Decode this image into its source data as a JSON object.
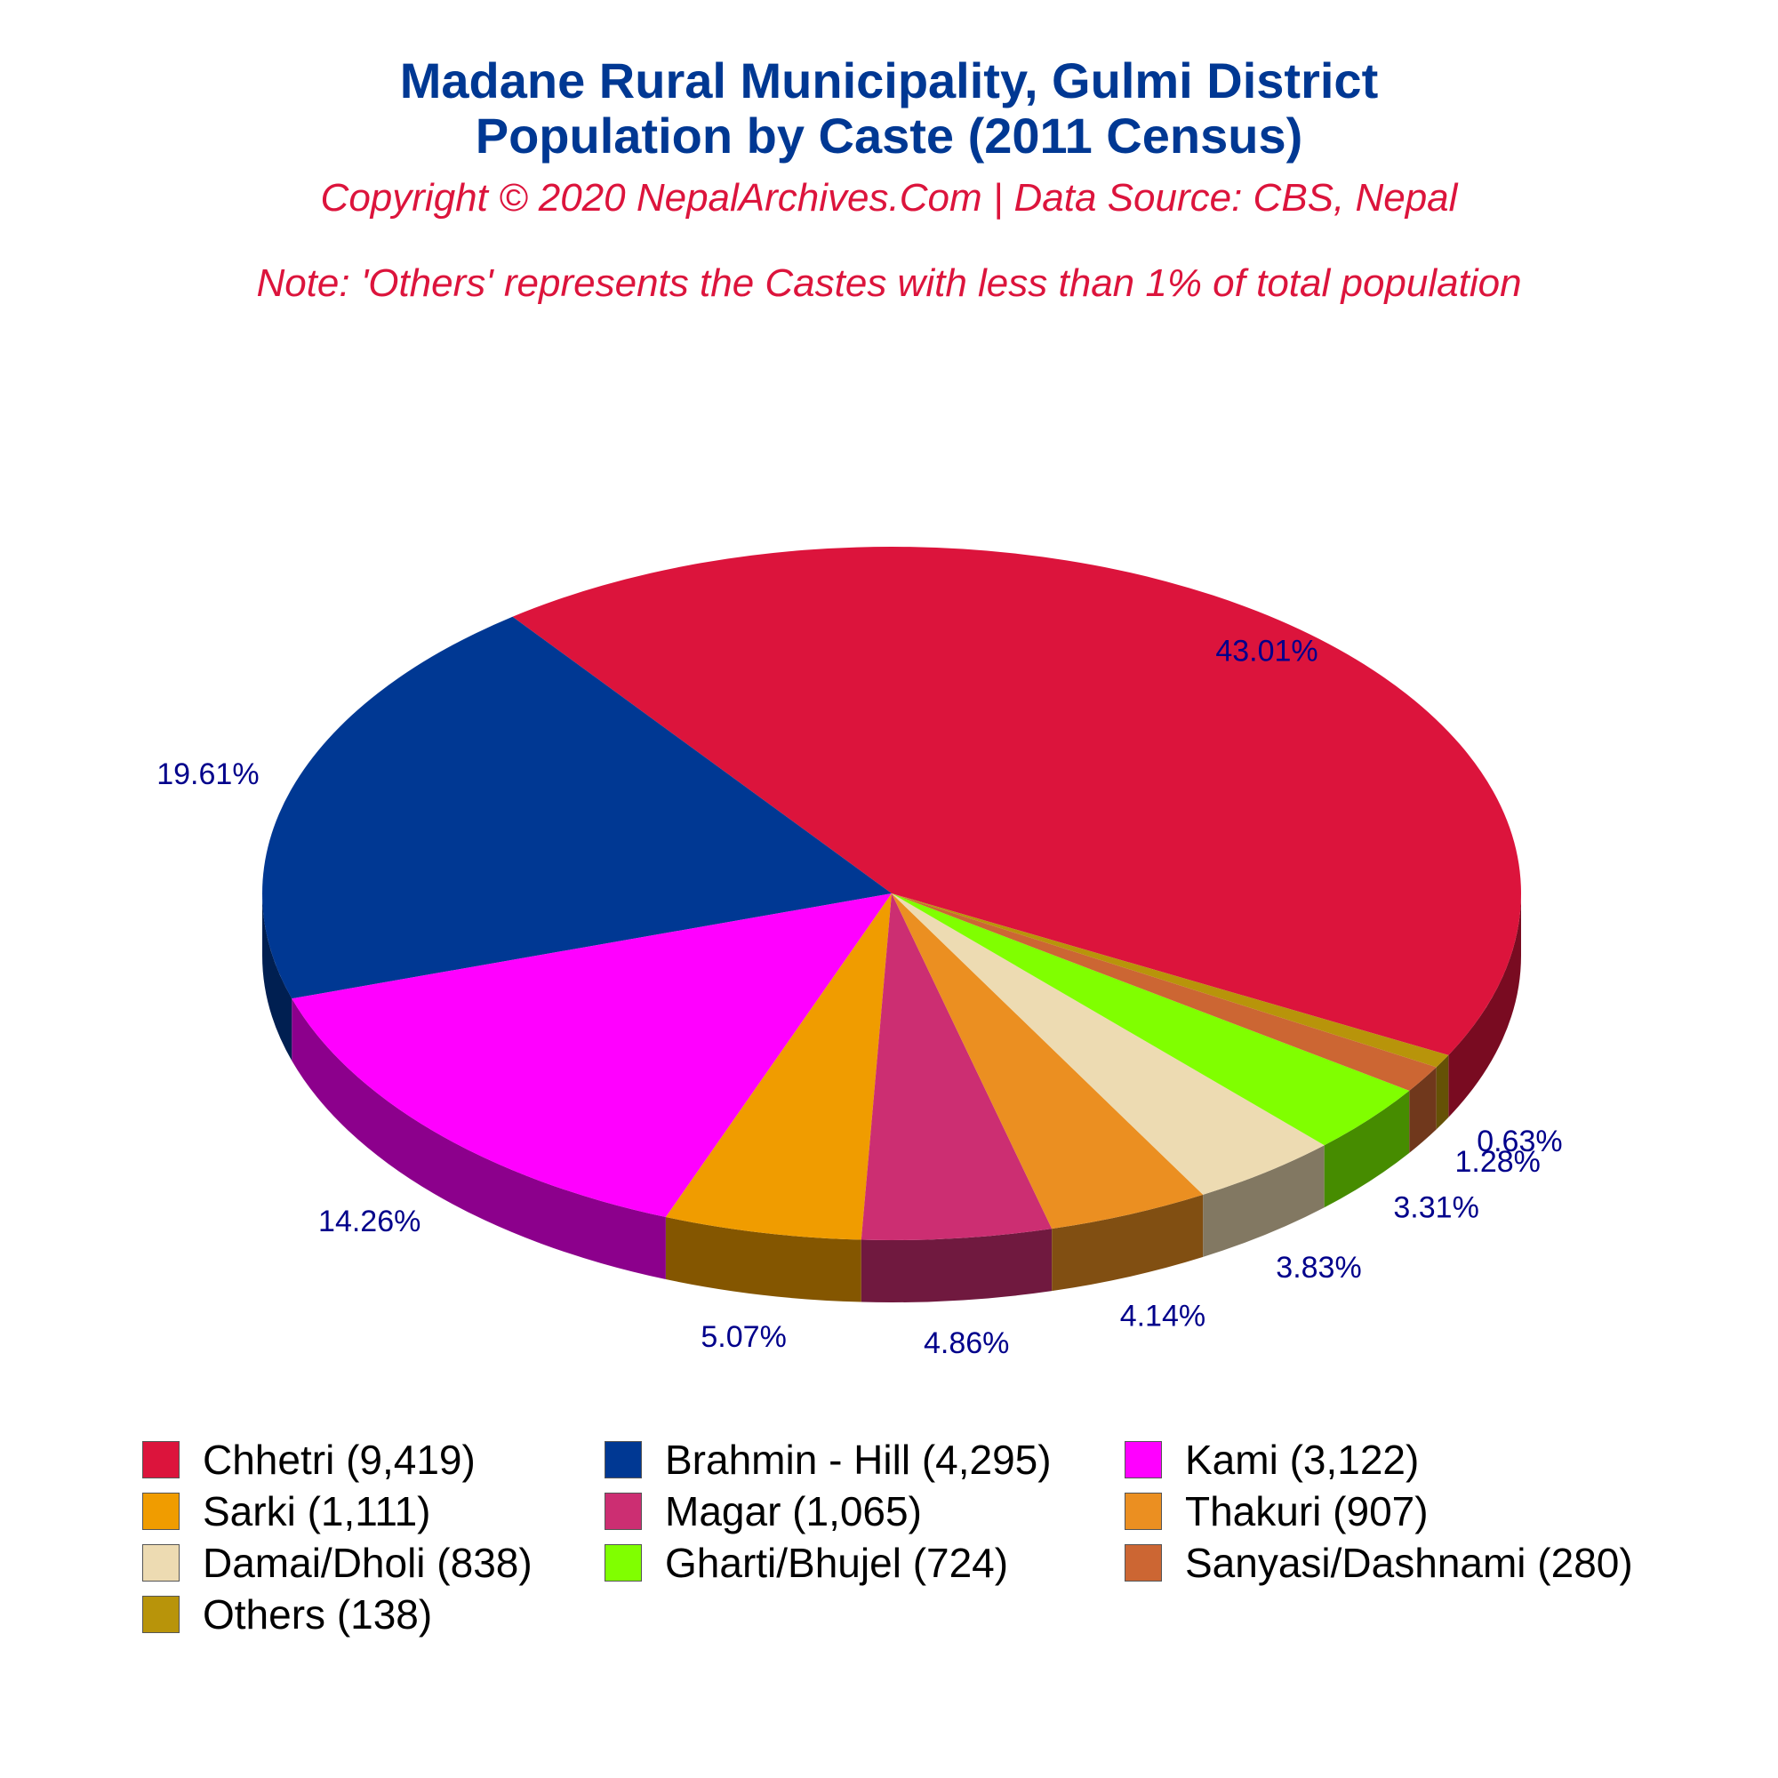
{
  "title_lines": [
    "Madane Rural Municipality, Gulmi District",
    "Population by Caste (2011 Census)"
  ],
  "subtitle": "Copyright © 2020 NepalArchives.Com | Data Source: CBS, Nepal",
  "note": "Note: 'Others' represents the Castes with less than 1% of total population",
  "label_color": "#00008b",
  "chart_data": {
    "type": "pie",
    "style": "3d",
    "legend_position": "bottom",
    "categories": [
      "Chhetri",
      "Brahmin - Hill",
      "Kami",
      "Sarki",
      "Magar",
      "Thakuri",
      "Damai/Dholi",
      "Gharti/Bhujel",
      "Sanyasi/Dashnami",
      "Others"
    ],
    "values": [
      9419,
      4295,
      3122,
      1111,
      1065,
      907,
      838,
      724,
      280,
      138
    ],
    "percent_labels": [
      "43.01%",
      "19.61%",
      "14.26%",
      "5.07%",
      "4.86%",
      "4.14%",
      "3.83%",
      "3.31%",
      "1.28%",
      "0.63%"
    ],
    "legend_labels": [
      "Chhetri (9,419)",
      "Brahmin - Hill (4,295)",
      "Kami (3,122)",
      "Sarki (1,111)",
      "Magar (1,065)",
      "Thakuri (907)",
      "Damai/Dholi (838)",
      "Gharti/Bhujel (724)",
      "Sanyasi/Dashnami (280)",
      "Others (138)"
    ],
    "colors": [
      "#dc143c",
      "#003893",
      "#ff00ff",
      "#f09c00",
      "#cc2e72",
      "#eb8f21",
      "#eddbb2",
      "#80ff00",
      "#cc6633",
      "#b8940a"
    ]
  }
}
